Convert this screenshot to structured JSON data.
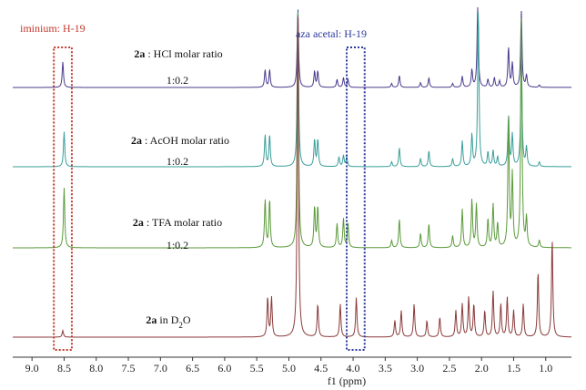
{
  "chart_data": {
    "type": "line",
    "title": "",
    "xlabel": "f1 (ppm)",
    "ylabel": "",
    "x_reversed": true,
    "xlim": [
      9.3,
      0.6
    ],
    "xticks": [
      "9.0",
      "8.5",
      "8.0",
      "7.5",
      "7.0",
      "6.5",
      "6.0",
      "5.5",
      "5.0",
      "4.5",
      "4.0",
      "3.5",
      "3.0",
      "2.5",
      "2.0",
      "1.5",
      "1.0"
    ],
    "xtick_values": [
      9.0,
      8.5,
      8.0,
      7.5,
      7.0,
      6.5,
      6.0,
      5.5,
      5.0,
      4.5,
      4.0,
      3.5,
      3.0,
      2.5,
      2.0,
      1.5,
      1.0
    ],
    "grid": false,
    "annotations": [
      {
        "label": "iminium: H-19",
        "ppm": 8.5,
        "color": "#c0392b",
        "box_range": [
          8.38,
          8.66
        ]
      },
      {
        "label": "aza acetal: H-19",
        "ppm": 3.95,
        "color": "#2b3a9c",
        "box_range": [
          3.82,
          4.1
        ]
      }
    ],
    "series": [
      {
        "name": "2a : HCl molar ratio",
        "label_bold": "2a",
        "label_rest": " : HCl molar ratio",
        "ratio": "1:0.2",
        "color": "#4a3a8c",
        "peaks": [
          {
            "ppm": 8.52,
            "h": 0.32
          },
          {
            "ppm": 5.37,
            "h": 0.22
          },
          {
            "ppm": 5.3,
            "h": 0.22
          },
          {
            "ppm": 4.86,
            "h": 1.0
          },
          {
            "ppm": 4.6,
            "h": 0.2
          },
          {
            "ppm": 4.55,
            "h": 0.2
          },
          {
            "ppm": 4.25,
            "h": 0.1
          },
          {
            "ppm": 4.15,
            "h": 0.12
          },
          {
            "ppm": 4.08,
            "h": 0.1
          },
          {
            "ppm": 3.4,
            "h": 0.05
          },
          {
            "ppm": 3.28,
            "h": 0.15
          },
          {
            "ppm": 2.95,
            "h": 0.06
          },
          {
            "ppm": 2.82,
            "h": 0.12
          },
          {
            "ppm": 2.45,
            "h": 0.05
          },
          {
            "ppm": 2.3,
            "h": 0.14
          },
          {
            "ppm": 2.15,
            "h": 0.22
          },
          {
            "ppm": 2.06,
            "h": 1.0
          },
          {
            "ppm": 1.9,
            "h": 0.1
          },
          {
            "ppm": 1.8,
            "h": 0.12
          },
          {
            "ppm": 1.72,
            "h": 0.08
          },
          {
            "ppm": 1.58,
            "h": 0.5
          },
          {
            "ppm": 1.52,
            "h": 0.3
          },
          {
            "ppm": 1.38,
            "h": 0.95
          },
          {
            "ppm": 1.3,
            "h": 0.15
          },
          {
            "ppm": 1.1,
            "h": 0.03
          }
        ]
      },
      {
        "name": "2a : AcOH molar ratio",
        "label_bold": "2a",
        "label_rest": " : AcOH molar ratio",
        "ratio": "1:0.2",
        "color": "#3a9e9a",
        "peaks": [
          {
            "ppm": 8.5,
            "h": 0.22
          },
          {
            "ppm": 5.37,
            "h": 0.2
          },
          {
            "ppm": 5.3,
            "h": 0.2
          },
          {
            "ppm": 4.86,
            "h": 1.0
          },
          {
            "ppm": 4.6,
            "h": 0.17
          },
          {
            "ppm": 4.55,
            "h": 0.17
          },
          {
            "ppm": 4.22,
            "h": 0.06
          },
          {
            "ppm": 4.15,
            "h": 0.07
          },
          {
            "ppm": 4.1,
            "h": 0.06
          },
          {
            "ppm": 3.4,
            "h": 0.03
          },
          {
            "ppm": 3.28,
            "h": 0.12
          },
          {
            "ppm": 2.95,
            "h": 0.05
          },
          {
            "ppm": 2.82,
            "h": 0.1
          },
          {
            "ppm": 2.45,
            "h": 0.05
          },
          {
            "ppm": 2.3,
            "h": 0.16
          },
          {
            "ppm": 2.15,
            "h": 0.2
          },
          {
            "ppm": 2.05,
            "h": 1.0
          },
          {
            "ppm": 1.9,
            "h": 0.09
          },
          {
            "ppm": 1.82,
            "h": 0.1
          },
          {
            "ppm": 1.75,
            "h": 0.06
          },
          {
            "ppm": 1.58,
            "h": 0.32
          },
          {
            "ppm": 1.52,
            "h": 0.2
          },
          {
            "ppm": 1.38,
            "h": 0.75
          },
          {
            "ppm": 1.3,
            "h": 0.12
          },
          {
            "ppm": 1.1,
            "h": 0.03
          }
        ]
      },
      {
        "name": "2a : TFA molar ratio",
        "label_bold": "2a",
        "label_rest": " : TFA molar ratio",
        "ratio": "1:0.2",
        "color": "#5a9a3a",
        "peaks": [
          {
            "ppm": 8.5,
            "h": 0.25
          },
          {
            "ppm": 5.37,
            "h": 0.2
          },
          {
            "ppm": 5.3,
            "h": 0.2
          },
          {
            "ppm": 4.86,
            "h": 1.0
          },
          {
            "ppm": 4.6,
            "h": 0.17
          },
          {
            "ppm": 4.55,
            "h": 0.17
          },
          {
            "ppm": 4.25,
            "h": 0.1
          },
          {
            "ppm": 4.15,
            "h": 0.12
          },
          {
            "ppm": 4.08,
            "h": 0.1
          },
          {
            "ppm": 3.4,
            "h": 0.03
          },
          {
            "ppm": 3.28,
            "h": 0.12
          },
          {
            "ppm": 2.95,
            "h": 0.06
          },
          {
            "ppm": 2.82,
            "h": 0.1
          },
          {
            "ppm": 2.45,
            "h": 0.05
          },
          {
            "ppm": 2.3,
            "h": 0.16
          },
          {
            "ppm": 2.15,
            "h": 0.2
          },
          {
            "ppm": 2.08,
            "h": 0.18
          },
          {
            "ppm": 1.9,
            "h": 0.12
          },
          {
            "ppm": 1.82,
            "h": 0.18
          },
          {
            "ppm": 1.75,
            "h": 0.1
          },
          {
            "ppm": 1.58,
            "h": 0.55
          },
          {
            "ppm": 1.52,
            "h": 0.3
          },
          {
            "ppm": 1.38,
            "h": 0.95
          },
          {
            "ppm": 1.3,
            "h": 0.12
          },
          {
            "ppm": 1.1,
            "h": 0.03
          }
        ]
      },
      {
        "name": "2a in D2O",
        "label_bold": "2a",
        "label_rest": " in D",
        "label_sub": "2",
        "label_end": "O",
        "ratio": "",
        "color": "#8a3a3a",
        "peaks": [
          {
            "ppm": 8.52,
            "h": 0.02
          },
          {
            "ppm": 5.33,
            "h": 0.12
          },
          {
            "ppm": 5.27,
            "h": 0.12
          },
          {
            "ppm": 4.86,
            "h": 1.0
          },
          {
            "ppm": 4.55,
            "h": 0.1
          },
          {
            "ppm": 4.2,
            "h": 0.1
          },
          {
            "ppm": 3.95,
            "h": 0.12
          },
          {
            "ppm": 3.35,
            "h": 0.05
          },
          {
            "ppm": 3.25,
            "h": 0.08
          },
          {
            "ppm": 3.05,
            "h": 0.1
          },
          {
            "ppm": 2.85,
            "h": 0.05
          },
          {
            "ppm": 2.65,
            "h": 0.06
          },
          {
            "ppm": 2.4,
            "h": 0.08
          },
          {
            "ppm": 2.3,
            "h": 0.1
          },
          {
            "ppm": 2.2,
            "h": 0.12
          },
          {
            "ppm": 2.12,
            "h": 0.1
          },
          {
            "ppm": 1.95,
            "h": 0.08
          },
          {
            "ppm": 1.82,
            "h": 0.14
          },
          {
            "ppm": 1.7,
            "h": 0.1
          },
          {
            "ppm": 1.6,
            "h": 0.12
          },
          {
            "ppm": 1.5,
            "h": 0.08
          },
          {
            "ppm": 1.35,
            "h": 0.1
          },
          {
            "ppm": 1.12,
            "h": 0.2
          },
          {
            "ppm": 0.9,
            "h": 0.3
          }
        ]
      }
    ]
  }
}
